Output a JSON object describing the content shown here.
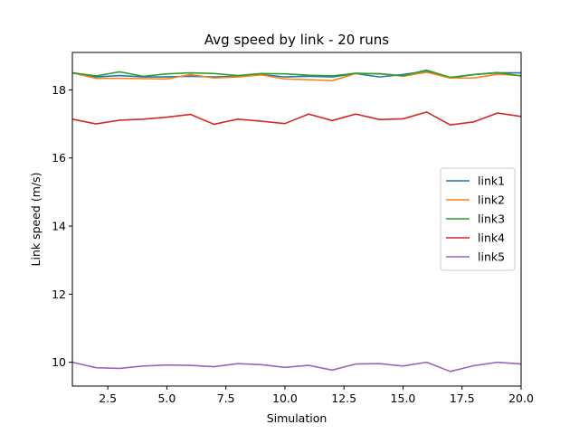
{
  "chart_data": {
    "type": "line",
    "title": "Avg speed by link - 20 runs",
    "xlabel": "Simulation",
    "ylabel": "Link speed (m/s)",
    "xlim": [
      1,
      20
    ],
    "ylim": [
      9.3,
      19.1
    ],
    "xticks": [
      2.5,
      5.0,
      7.5,
      10.0,
      12.5,
      15.0,
      17.5,
      20.0
    ],
    "xtick_labels": [
      "2.5",
      "5.0",
      "7.5",
      "10.0",
      "12.5",
      "15.0",
      "17.5",
      "20.0"
    ],
    "yticks": [
      10,
      12,
      14,
      16,
      18
    ],
    "ytick_labels": [
      "10",
      "12",
      "14",
      "16",
      "18"
    ],
    "grid": false,
    "legend_position": "center-right",
    "x": [
      1,
      2,
      3,
      4,
      5,
      6,
      7,
      8,
      9,
      10,
      11,
      12,
      13,
      14,
      15,
      16,
      17,
      18,
      19,
      20
    ],
    "series": [
      {
        "name": "link1",
        "color": "#1f77b4",
        "values": [
          18.5,
          18.38,
          18.42,
          18.38,
          18.38,
          18.4,
          18.38,
          18.4,
          18.45,
          18.38,
          18.4,
          18.38,
          18.48,
          18.38,
          18.45,
          18.55,
          18.35,
          18.45,
          18.5,
          18.5
        ]
      },
      {
        "name": "link2",
        "color": "#ff7f0e",
        "values": [
          18.5,
          18.34,
          18.34,
          18.33,
          18.32,
          18.45,
          18.35,
          18.38,
          18.44,
          18.32,
          18.3,
          18.27,
          18.48,
          18.48,
          18.4,
          18.52,
          18.35,
          18.35,
          18.46,
          18.42
        ]
      },
      {
        "name": "link3",
        "color": "#2ca02c",
        "values": [
          18.5,
          18.41,
          18.53,
          18.4,
          18.47,
          18.5,
          18.48,
          18.42,
          18.48,
          18.47,
          18.43,
          18.41,
          18.49,
          18.47,
          18.42,
          18.58,
          18.37,
          18.45,
          18.51,
          18.41
        ]
      },
      {
        "name": "link4",
        "color": "#d62728",
        "values": [
          17.14,
          17.0,
          17.11,
          17.14,
          17.2,
          17.28,
          16.99,
          17.14,
          17.08,
          17.01,
          17.29,
          17.1,
          17.29,
          17.13,
          17.15,
          17.35,
          16.97,
          17.06,
          17.32,
          17.22
        ]
      },
      {
        "name": "link5",
        "color": "#9467bd",
        "values": [
          10.0,
          9.84,
          9.82,
          9.89,
          9.92,
          9.91,
          9.87,
          9.96,
          9.93,
          9.85,
          9.91,
          9.77,
          9.95,
          9.96,
          9.89,
          10.0,
          9.73,
          9.9,
          10.0,
          9.95
        ]
      }
    ]
  }
}
